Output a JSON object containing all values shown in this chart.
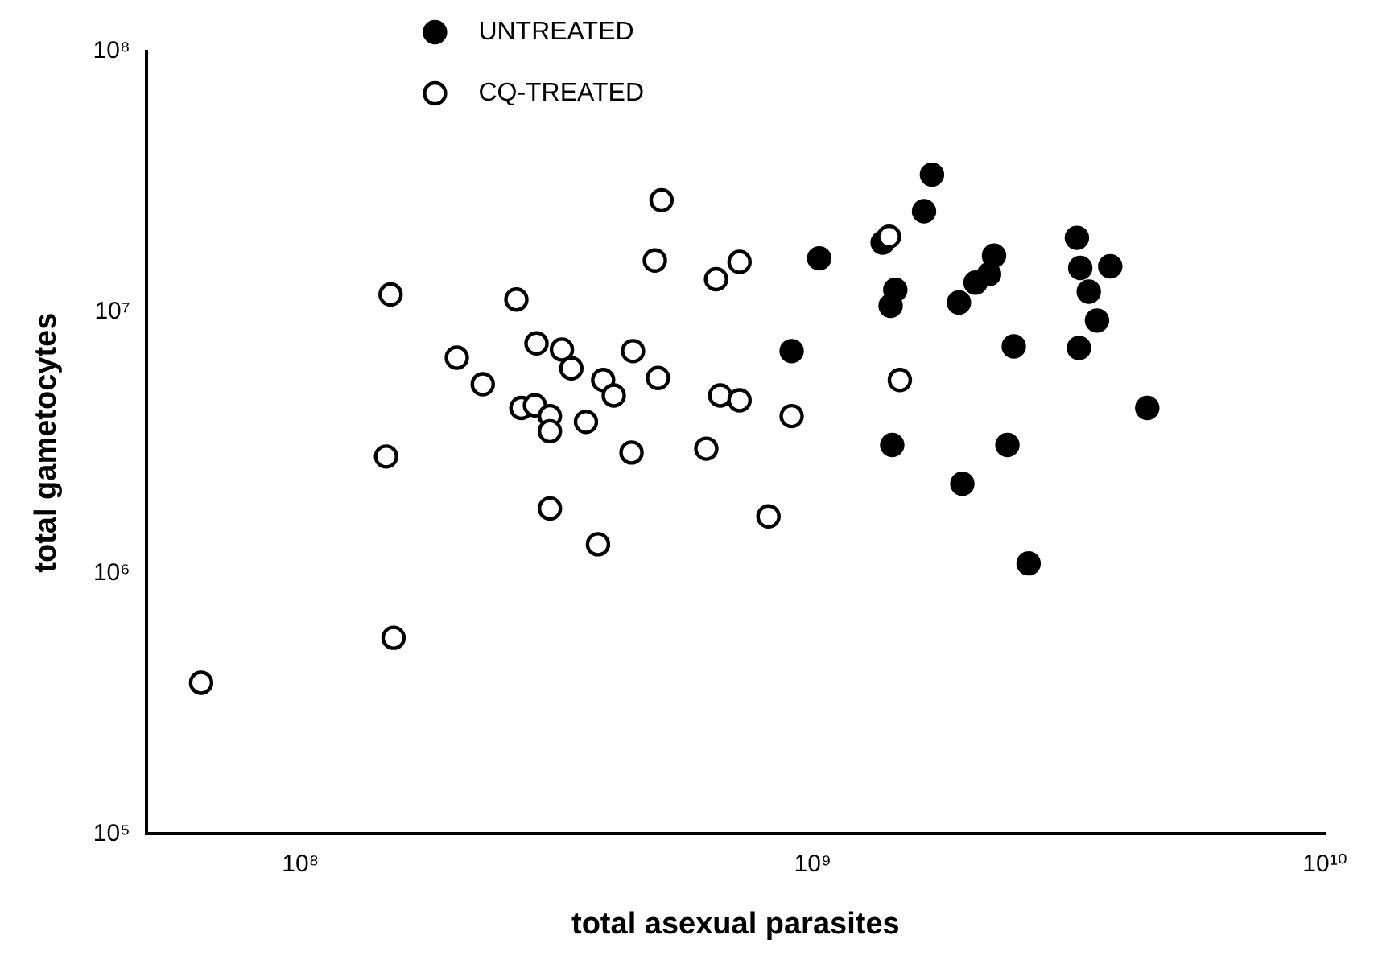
{
  "chart_data": {
    "type": "scatter",
    "xlabel": "total asexual parasites",
    "ylabel": "total gametocytes",
    "log": "xy",
    "grid": false,
    "legend": "top",
    "marker": "circle",
    "xlim": [
      50000000,
      10000000000
    ],
    "xticks": [
      {
        "value": 100000000,
        "label": "10⁸"
      },
      {
        "value": 1000000000,
        "label": "10⁹"
      },
      {
        "value": 10000000000,
        "label": "10¹⁰"
      }
    ],
    "ylim": [
      100000,
      100000000
    ],
    "yticks": [
      {
        "value": 100000,
        "label": "10⁵"
      },
      {
        "value": 1000000,
        "label": "10⁶"
      },
      {
        "value": 10000000,
        "label": "10⁷"
      },
      {
        "value": 100000000,
        "label": "10⁸"
      }
    ],
    "series": [
      {
        "name": "UNTREATED",
        "color": "#000000",
        "x": [
          1710000000,
          1650000000,
          1370000000,
          1030000000,
          3280000000,
          2260000000,
          2210000000,
          2080000000,
          3330000000,
          3810000000,
          1450000000,
          1420000000,
          1930000000,
          3460000000,
          3590000000,
          910000000,
          2470000000,
          3310000000,
          4500000000,
          1430000000,
          2400000000,
          1960000000,
          2640000000
        ],
        "values": [
          33700000,
          24400000,
          18500000,
          16100000,
          19300000,
          16500000,
          14000000,
          13000000,
          14800000,
          15000000,
          12200000,
          10600000,
          10900000,
          12000000,
          9300000,
          7100000,
          7400000,
          7300000,
          4300000,
          3100000,
          3100000,
          2200000,
          1090000
        ]
      },
      {
        "name": "CQ-TREATED",
        "color": "#ffffff",
        "x": [
          150000000,
          264000000,
          289000000,
          324000000,
          338000000,
          202000000,
          227000000,
          446000000,
          499000000,
          390000000,
          409000000,
          270000000,
          287000000,
          307000000,
          307000000,
          361000000,
          147000000,
          443000000,
          507000000,
          492000000,
          648000000,
          720000000,
          1410000000,
          660000000,
          720000000,
          910000000,
          1480000000,
          620000000,
          820000000,
          307000000,
          381000000,
          152000000,
          64000000
        ],
        "values": [
          11700000,
          11200000,
          7600000,
          7200000,
          6100000,
          6700000,
          5300000,
          7100000,
          5600000,
          5500000,
          4800000,
          4300000,
          4400000,
          4000000,
          3500000,
          3800000,
          2800000,
          2900000,
          26900000,
          15800000,
          13400000,
          15600000,
          19500000,
          4800000,
          4600000,
          4000000,
          5500000,
          3000000,
          1650000,
          1770000,
          1290000,
          565000,
          380000
        ]
      }
    ]
  }
}
